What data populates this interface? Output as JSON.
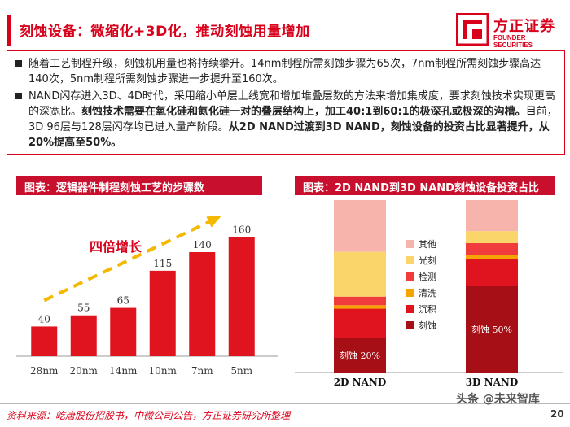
{
  "header": {
    "title": "刻蚀设备：微缩化+3D化，推动刻蚀用量增加",
    "logo_cn": "方正证券",
    "logo_en": "FOUNDER SECURITIES"
  },
  "bullets": [
    {
      "text": "随着工艺制程升级，刻蚀机用量也将持续攀升。14nm制程所需刻蚀步骤为65次，7nm制程所需刻蚀步骤高达140次，5nm制程所需刻蚀步骤进一步提升至160次。"
    },
    {
      "text_a": "NAND闪存进入3D、4D时代，采用缩小单层上线宽和增加堆叠层数的方法来增加集成度，要求刻蚀技术实现更高的深宽比。",
      "bold_a": "刻蚀技术需要在氧化硅和氮化硅一对的叠层结构上，加工40:1到60:1的极深孔或极深的沟槽。",
      "text_b": "目前，3D 96层与128层闪存均已进入量产阶段。",
      "bold_b": "从2D NAND过渡到3D NAND，刻蚀设备的投资占比显著提升，从20%提高至50%。"
    }
  ],
  "left_chart": {
    "caption": "图表：逻辑器件制程刻蚀工艺的步骤数",
    "annotation": "四倍增长"
  },
  "right_chart": {
    "caption": "图表：2D NAND到3D NAND刻蚀设备投资占比"
  },
  "chart_data": [
    {
      "type": "bar",
      "title": "逻辑器件制程刻蚀工艺的步骤数",
      "categories": [
        "28nm",
        "20nm",
        "14nm",
        "10nm",
        "7nm",
        "5nm"
      ],
      "values": [
        40,
        55,
        65,
        115,
        140,
        160
      ],
      "ylim": [
        0,
        175
      ],
      "grid": false,
      "bar_color": "#e0141e"
    },
    {
      "type": "bar",
      "stacked": true,
      "title": "2D NAND到3D NAND刻蚀设备投资占比",
      "categories": [
        "2D NAND",
        "3D NAND"
      ],
      "series": [
        {
          "name": "刻蚀",
          "color": "#a50f15",
          "values": [
            20,
            50
          ]
        },
        {
          "name": "沉积",
          "color": "#e0141e",
          "values": [
            17,
            16
          ]
        },
        {
          "name": "清洗",
          "color": "#f5a300",
          "values": [
            2,
            2
          ]
        },
        {
          "name": "检测",
          "color": "#f03c3c",
          "values": [
            5,
            7
          ]
        },
        {
          "name": "光刻",
          "color": "#f9d56a",
          "values": [
            26,
            7
          ]
        },
        {
          "name": "其他",
          "color": "#f6b4ad",
          "values": [
            30,
            18
          ]
        }
      ],
      "bar_labels": [
        "刻蚀 20%",
        "刻蚀 50%"
      ],
      "ylim": [
        0,
        100
      ],
      "legend_position": "left-middle"
    }
  ],
  "footer": {
    "source": "资料来源：屹唐股份招股书，中微公司公告，方正证券研究所整理",
    "page": "20",
    "watermark": "头条 @未来智库"
  }
}
